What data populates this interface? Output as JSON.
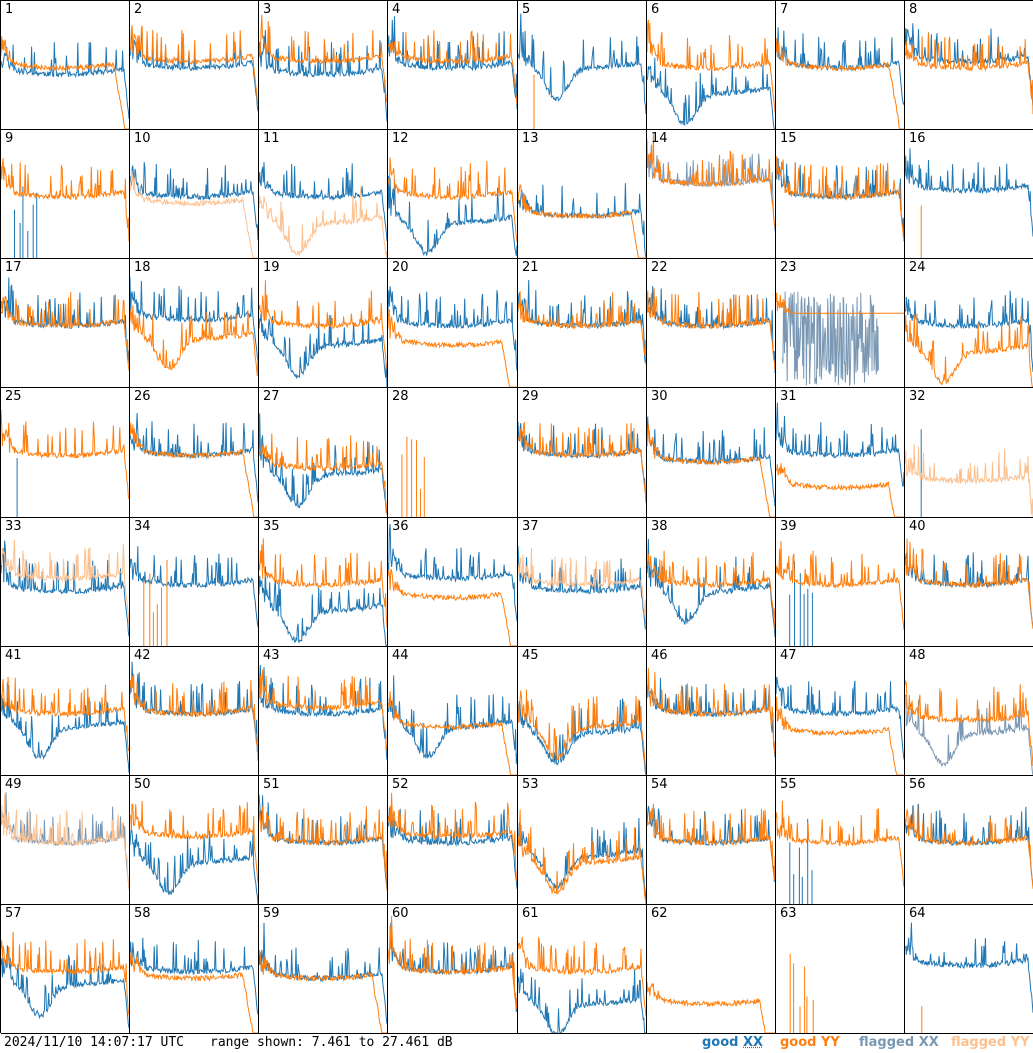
{
  "footer": {
    "timestamp": "2024/11/10 14:07:17 UTC",
    "range": "range shown: 7.461 to 27.461 dB"
  },
  "legend": [
    {
      "name": "good",
      "pol": "XX",
      "color": "#1f77b4"
    },
    {
      "name": "good",
      "pol": "YY",
      "color": "#ff7f0e"
    },
    {
      "name": "flagged",
      "pol": "XX",
      "color": "#7a98b4"
    },
    {
      "name": "flagged",
      "pol": "YY",
      "color": "#fdc18f"
    }
  ],
  "colors": {
    "good_xx": "#1f77b4",
    "good_yy": "#ff7f0e",
    "flagged_xx": "#7a98b4",
    "flagged_yy": "#fdc18f"
  },
  "chart_data": {
    "type": "line",
    "grid": "8x8 small-multiples",
    "ylim": [
      7.461,
      27.461
    ],
    "yunit": "dB",
    "series_names": [
      "XX",
      "YY"
    ],
    "panels": [
      {
        "id": "1",
        "xx": "good",
        "yy": "good",
        "xx_level": 16,
        "yy_level": 17,
        "xx_profile": "normal",
        "yy_profile": "dropY",
        "dropout": false
      },
      {
        "id": "2",
        "xx": "good",
        "yy": "good",
        "xx_level": 17,
        "yy_level": 18,
        "xx_profile": "normal",
        "yy_profile": "normal",
        "dropout": false
      },
      {
        "id": "3",
        "xx": "good",
        "yy": "good",
        "xx_level": 16,
        "yy_level": 18,
        "xx_profile": "normal",
        "yy_profile": "normal",
        "dropout": false
      },
      {
        "id": "4",
        "xx": "good",
        "yy": "good",
        "xx_level": 17,
        "yy_level": 18,
        "xx_profile": "normal",
        "yy_profile": "normal",
        "dropout": false
      },
      {
        "id": "5",
        "xx": "good",
        "yy": "good",
        "xx_level": 17,
        "yy_level": null,
        "xx_profile": "dip",
        "yy_profile": "spike",
        "dropout": false
      },
      {
        "id": "6",
        "xx": "good",
        "yy": "good",
        "xx_level": 13,
        "yy_level": 17,
        "xx_profile": "dip",
        "yy_profile": "normal",
        "dropout": false
      },
      {
        "id": "7",
        "xx": "good",
        "yy": "good",
        "xx_level": 17,
        "yy_level": 17,
        "xx_profile": "normal",
        "yy_profile": "dropY",
        "dropout": false
      },
      {
        "id": "8",
        "xx": "good",
        "yy": "good",
        "xx_level": 18,
        "yy_level": 17,
        "xx_profile": "normal",
        "yy_profile": "normal",
        "dropout": false
      },
      {
        "id": "9",
        "xx": "good",
        "yy": "good",
        "xx_level": null,
        "yy_level": 17,
        "xx_profile": "spikes",
        "yy_profile": "normal",
        "dropout": false
      },
      {
        "id": "10",
        "xx": "good",
        "yy": "flagged",
        "xx_level": 17,
        "yy_level": 16,
        "xx_profile": "normal",
        "yy_profile": "dropY",
        "dropout": false
      },
      {
        "id": "11",
        "xx": "good",
        "yy": "flagged",
        "xx_level": 17,
        "yy_level": 13,
        "xx_profile": "normal",
        "yy_profile": "dip",
        "dropout": false
      },
      {
        "id": "12",
        "xx": "good",
        "yy": "good",
        "xx_level": 13,
        "yy_level": 17,
        "xx_profile": "dip",
        "yy_profile": "normal",
        "dropout": false
      },
      {
        "id": "13",
        "xx": "good",
        "yy": "good",
        "xx_level": 14,
        "yy_level": 14,
        "xx_profile": "normal",
        "yy_profile": "dropY",
        "dropout": false
      },
      {
        "id": "14",
        "xx": "flagged",
        "yy": "good",
        "xx_level": 19,
        "yy_level": 19,
        "xx_profile": "normal",
        "yy_profile": "normal",
        "dropout": false
      },
      {
        "id": "15",
        "xx": "good",
        "yy": "good",
        "xx_level": 17,
        "yy_level": 17,
        "xx_profile": "normal",
        "yy_profile": "normal",
        "dropout": false
      },
      {
        "id": "16",
        "xx": "good",
        "yy": "good",
        "xx_level": 18,
        "yy_level": null,
        "xx_profile": "normal",
        "yy_profile": "spike",
        "dropout": false
      },
      {
        "id": "17",
        "xx": "good",
        "yy": "good",
        "xx_level": 17,
        "yy_level": 17,
        "xx_profile": "normal",
        "yy_profile": "normal",
        "dropout": false
      },
      {
        "id": "18",
        "xx": "good",
        "yy": "good",
        "xx_level": 18,
        "yy_level": 15,
        "xx_profile": "normal",
        "yy_profile": "dip",
        "dropout": false
      },
      {
        "id": "19",
        "xx": "good",
        "yy": "good",
        "xx_level": 14,
        "yy_level": 17,
        "xx_profile": "dip",
        "yy_profile": "normal",
        "dropout": false
      },
      {
        "id": "20",
        "xx": "good",
        "yy": "good",
        "xx_level": 17,
        "yy_level": 14,
        "xx_profile": "normal",
        "yy_profile": "dropY",
        "dropout": false
      },
      {
        "id": "21",
        "xx": "good",
        "yy": "good",
        "xx_level": 17,
        "yy_level": 17,
        "xx_profile": "normal",
        "yy_profile": "normal",
        "dropout": false
      },
      {
        "id": "22",
        "xx": "good",
        "yy": "good",
        "xx_level": 17,
        "yy_level": 17,
        "xx_profile": "normal",
        "yy_profile": "normal",
        "dropout": false
      },
      {
        "id": "23",
        "xx": "flagged",
        "yy": "good",
        "xx_level": null,
        "yy_level": 19,
        "xx_profile": "noise",
        "yy_profile": "flatY",
        "dropout": false
      },
      {
        "id": "24",
        "xx": "good",
        "yy": "good",
        "xx_level": 17,
        "yy_level": 13,
        "xx_profile": "normal",
        "yy_profile": "dip",
        "dropout": false
      },
      {
        "id": "25",
        "xx": "good",
        "yy": "good",
        "xx_level": null,
        "yy_level": 17,
        "xx_profile": "spike",
        "yy_profile": "normal",
        "dropout": false
      },
      {
        "id": "26",
        "xx": "good",
        "yy": "good",
        "xx_level": 17,
        "yy_level": 17,
        "xx_profile": "normal",
        "yy_profile": "dropY",
        "dropout": false
      },
      {
        "id": "27",
        "xx": "good",
        "yy": "good",
        "xx_level": 14,
        "yy_level": 15,
        "xx_profile": "dip",
        "yy_profile": "normal",
        "dropout": false
      },
      {
        "id": "28",
        "xx": "good",
        "yy": "good",
        "xx_level": null,
        "yy_level": null,
        "xx_profile": "none",
        "yy_profile": "spikes",
        "dropout": true
      },
      {
        "id": "29",
        "xx": "good",
        "yy": "good",
        "xx_level": 17,
        "yy_level": 17,
        "xx_profile": "normal",
        "yy_profile": "normal",
        "dropout": false
      },
      {
        "id": "30",
        "xx": "good",
        "yy": "good",
        "xx_level": 16,
        "yy_level": 16,
        "xx_profile": "normal",
        "yy_profile": "dropY",
        "dropout": false
      },
      {
        "id": "31",
        "xx": "good",
        "yy": "good",
        "xx_level": 17,
        "yy_level": 12,
        "xx_profile": "normal",
        "yy_profile": "dropY",
        "dropout": false
      },
      {
        "id": "32",
        "xx": "good",
        "yy": "flagged",
        "xx_level": null,
        "yy_level": 13,
        "xx_profile": "spike",
        "yy_profile": "normal",
        "dropout": false
      },
      {
        "id": "33",
        "xx": "good",
        "yy": "flagged",
        "xx_level": 16,
        "yy_level": 18,
        "xx_profile": "normal",
        "yy_profile": "normal",
        "dropout": false
      },
      {
        "id": "34",
        "xx": "good",
        "yy": "good",
        "xx_level": 17,
        "yy_level": null,
        "xx_profile": "normal",
        "yy_profile": "spikes",
        "dropout": false
      },
      {
        "id": "35",
        "xx": "good",
        "yy": "good",
        "xx_level": 13,
        "yy_level": 17,
        "xx_profile": "dip",
        "yy_profile": "normal",
        "dropout": false
      },
      {
        "id": "36",
        "xx": "good",
        "yy": "good",
        "xx_level": 18,
        "yy_level": 15,
        "xx_profile": "normal",
        "yy_profile": "dropY",
        "dropout": false
      },
      {
        "id": "37",
        "xx": "good",
        "yy": "flagged",
        "xx_level": 16,
        "yy_level": 17,
        "xx_profile": "normal",
        "yy_profile": "normal",
        "dropout": false
      },
      {
        "id": "38",
        "xx": "good",
        "yy": "good",
        "xx_level": 16,
        "yy_level": 17,
        "xx_profile": "dip",
        "yy_profile": "normal",
        "dropout": false
      },
      {
        "id": "39",
        "xx": "good",
        "yy": "good",
        "xx_level": null,
        "yy_level": 17,
        "xx_profile": "spikes",
        "yy_profile": "normal",
        "dropout": false
      },
      {
        "id": "40",
        "xx": "good",
        "yy": "good",
        "xx_level": 17,
        "yy_level": 17,
        "xx_profile": "normal",
        "yy_profile": "normal",
        "dropout": false
      },
      {
        "id": "41",
        "xx": "good",
        "yy": "good",
        "xx_level": 15,
        "yy_level": 17,
        "xx_profile": "dip",
        "yy_profile": "normal",
        "dropout": false
      },
      {
        "id": "42",
        "xx": "good",
        "yy": "good",
        "xx_level": 17,
        "yy_level": 17,
        "xx_profile": "normal",
        "yy_profile": "normal",
        "dropout": false
      },
      {
        "id": "43",
        "xx": "good",
        "yy": "good",
        "xx_level": 17,
        "yy_level": 18,
        "xx_profile": "normal",
        "yy_profile": "normal",
        "dropout": false
      },
      {
        "id": "44",
        "xx": "good",
        "yy": "good",
        "xx_level": 15,
        "yy_level": 15,
        "xx_profile": "dip",
        "yy_profile": "dropY",
        "dropout": false
      },
      {
        "id": "45",
        "xx": "good",
        "yy": "good",
        "xx_level": 14,
        "yy_level": 15,
        "xx_profile": "dip",
        "yy_profile": "dip",
        "dropout": false
      },
      {
        "id": "46",
        "xx": "good",
        "yy": "good",
        "xx_level": 17,
        "yy_level": 17,
        "xx_profile": "normal",
        "yy_profile": "normal",
        "dropout": false
      },
      {
        "id": "47",
        "xx": "good",
        "yy": "good",
        "xx_level": 17,
        "yy_level": 14,
        "xx_profile": "normal",
        "yy_profile": "dropY",
        "dropout": false
      },
      {
        "id": "48",
        "xx": "flagged",
        "yy": "good",
        "xx_level": 14,
        "yy_level": 16,
        "xx_profile": "dip",
        "yy_profile": "normal",
        "dropout": false
      },
      {
        "id": "49",
        "xx": "flagged",
        "yy": "flagged",
        "xx_level": 17,
        "yy_level": 17,
        "xx_profile": "normal",
        "yy_profile": "normal",
        "dropout": false
      },
      {
        "id": "50",
        "xx": "good",
        "yy": "good",
        "xx_level": 14,
        "yy_level": 18,
        "xx_profile": "dip",
        "yy_profile": "normal",
        "dropout": false
      },
      {
        "id": "51",
        "xx": "good",
        "yy": "good",
        "xx_level": 17,
        "yy_level": 17,
        "xx_profile": "normal",
        "yy_profile": "normal",
        "dropout": false
      },
      {
        "id": "52",
        "xx": "good",
        "yy": "good",
        "xx_level": 17,
        "yy_level": 18,
        "xx_profile": "normal",
        "yy_profile": "normal",
        "dropout": false
      },
      {
        "id": "53",
        "xx": "good",
        "yy": "good",
        "xx_level": 15,
        "yy_level": 14,
        "xx_profile": "dip",
        "yy_profile": "dip",
        "dropout": false
      },
      {
        "id": "54",
        "xx": "good",
        "yy": "good",
        "xx_level": 17,
        "yy_level": 17,
        "xx_profile": "normal",
        "yy_profile": "normal",
        "dropout": false
      },
      {
        "id": "55",
        "xx": "good",
        "yy": "good",
        "xx_level": null,
        "yy_level": 17,
        "xx_profile": "spikes",
        "yy_profile": "normal",
        "dropout": false
      },
      {
        "id": "56",
        "xx": "good",
        "yy": "good",
        "xx_level": 17,
        "yy_level": 17,
        "xx_profile": "normal",
        "yy_profile": "normal",
        "dropout": false
      },
      {
        "id": "57",
        "xx": "good",
        "yy": "good",
        "xx_level": 15,
        "yy_level": 17,
        "xx_profile": "dip",
        "yy_profile": "normal",
        "dropout": false
      },
      {
        "id": "58",
        "xx": "good",
        "yy": "good",
        "xx_level": 17,
        "yy_level": 16,
        "xx_profile": "normal",
        "yy_profile": "dropY",
        "dropout": false
      },
      {
        "id": "59",
        "xx": "good",
        "yy": "good",
        "xx_level": 16,
        "yy_level": 16,
        "xx_profile": "normal",
        "yy_profile": "dropY",
        "dropout": false
      },
      {
        "id": "60",
        "xx": "good",
        "yy": "good",
        "xx_level": 17,
        "yy_level": 17,
        "xx_profile": "normal",
        "yy_profile": "normal",
        "dropout": false
      },
      {
        "id": "61",
        "xx": "good",
        "yy": "good",
        "xx_level": 12,
        "yy_level": 17,
        "xx_profile": "dip",
        "yy_profile": "normal",
        "dropout": false
      },
      {
        "id": "62",
        "xx": "good",
        "yy": "good",
        "xx_level": null,
        "yy_level": 12,
        "xx_profile": "none",
        "yy_profile": "dropY",
        "dropout": false
      },
      {
        "id": "63",
        "xx": "good",
        "yy": "good",
        "xx_level": null,
        "yy_level": null,
        "xx_profile": "none",
        "yy_profile": "spikes",
        "dropout": true
      },
      {
        "id": "64",
        "xx": "good",
        "yy": "good",
        "xx_level": 18,
        "yy_level": null,
        "xx_profile": "normal",
        "yy_profile": "spike",
        "dropout": false
      }
    ]
  }
}
